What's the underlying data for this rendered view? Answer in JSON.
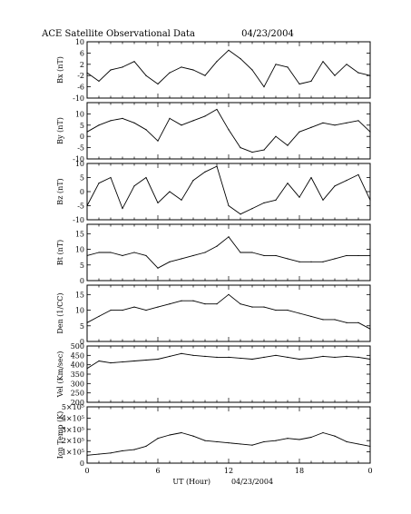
{
  "title": "ACE Satellite Observational Data",
  "title_date": "04/23/2004",
  "chart_data": {
    "type": "line",
    "title": "ACE Satellite Observational Data 04/23/2004",
    "xlabel": "UT (Hour)",
    "xlabel_date": "04/23/2004",
    "x_ticks": [
      "0",
      "6",
      "12",
      "18",
      "0"
    ],
    "xlim": [
      0,
      24
    ],
    "grid": false,
    "panels": [
      {
        "ylabel": "Bx (nT)",
        "ylim": [
          -10,
          10
        ],
        "yticks": [
          "-10",
          "-6",
          "-2",
          "2",
          "6",
          "10"
        ],
        "yticks_values": [
          -10,
          -6,
          -2,
          2,
          6,
          10
        ],
        "x": [
          0,
          1,
          2,
          3,
          4,
          5,
          6,
          7,
          8,
          9,
          10,
          11,
          12,
          13,
          14,
          15,
          16,
          17,
          18,
          19,
          20,
          21,
          22,
          23,
          24
        ],
        "values": [
          -1,
          -4,
          0,
          1,
          3,
          -2,
          -5,
          -1,
          1,
          0,
          -2,
          3,
          7,
          4,
          0,
          -6,
          2,
          1,
          -5,
          -4,
          3,
          -2,
          2,
          -1,
          -2
        ]
      },
      {
        "ylabel": "By (nT)",
        "ylim": [
          -10,
          15
        ],
        "yticks": [
          "-10",
          "-5",
          "0",
          "5",
          "10"
        ],
        "yticks_values": [
          -10,
          -5,
          0,
          5,
          10
        ],
        "x": [
          0,
          1,
          2,
          3,
          4,
          5,
          6,
          7,
          8,
          9,
          10,
          11,
          12,
          13,
          14,
          15,
          16,
          17,
          18,
          19,
          20,
          21,
          22,
          23,
          24
        ],
        "values": [
          2,
          5,
          7,
          8,
          6,
          3,
          -2,
          8,
          5,
          7,
          9,
          12,
          3,
          -5,
          -7,
          -6,
          0,
          -4,
          2,
          4,
          6,
          5,
          6,
          7,
          2
        ]
      },
      {
        "ylabel": "Bz (nT)",
        "ylim": [
          -10,
          10
        ],
        "yticks": [
          "-10",
          "-5",
          "0",
          "5",
          "10"
        ],
        "yticks_values": [
          -10,
          -5,
          0,
          5,
          10
        ],
        "x": [
          0,
          1,
          2,
          3,
          4,
          5,
          6,
          7,
          8,
          9,
          10,
          11,
          12,
          13,
          14,
          15,
          16,
          17,
          18,
          19,
          20,
          21,
          22,
          23,
          24
        ],
        "values": [
          -5,
          3,
          5,
          -6,
          2,
          5,
          -4,
          0,
          -3,
          4,
          7,
          9,
          -5,
          -8,
          -6,
          -4,
          -3,
          3,
          -2,
          5,
          -3,
          2,
          4,
          6,
          -3
        ]
      },
      {
        "ylabel": "Bt (nT)",
        "ylim": [
          0,
          18
        ],
        "yticks": [
          "0",
          "5",
          "10",
          "15"
        ],
        "yticks_values": [
          0,
          5,
          10,
          15
        ],
        "x": [
          0,
          1,
          2,
          3,
          4,
          5,
          6,
          7,
          8,
          9,
          10,
          11,
          12,
          13,
          14,
          15,
          16,
          17,
          18,
          19,
          20,
          21,
          22,
          23,
          24
        ],
        "values": [
          8,
          9,
          9,
          8,
          9,
          8,
          4,
          6,
          7,
          8,
          9,
          11,
          14,
          9,
          9,
          8,
          8,
          7,
          6,
          6,
          6,
          7,
          8,
          8,
          8
        ]
      },
      {
        "ylabel": "Den (1/CC)",
        "ylim": [
          0,
          18
        ],
        "yticks": [
          "0",
          "5",
          "10",
          "15"
        ],
        "yticks_values": [
          0,
          5,
          10,
          15
        ],
        "x": [
          0,
          1,
          2,
          3,
          4,
          5,
          6,
          7,
          8,
          9,
          10,
          11,
          12,
          13,
          14,
          15,
          16,
          17,
          18,
          19,
          20,
          21,
          22,
          23,
          24
        ],
        "values": [
          6,
          8,
          10,
          10,
          11,
          10,
          11,
          12,
          13,
          13,
          12,
          12,
          15,
          12,
          11,
          11,
          10,
          10,
          9,
          8,
          7,
          7,
          6,
          6,
          4
        ]
      },
      {
        "ylabel": "Vel (Km/sec)",
        "ylim": [
          200,
          500
        ],
        "yticks": [
          "200",
          "250",
          "300",
          "350",
          "400",
          "450",
          "500"
        ],
        "yticks_values": [
          200,
          250,
          300,
          350,
          400,
          450,
          500
        ],
        "x": [
          0,
          1,
          2,
          3,
          4,
          5,
          6,
          7,
          8,
          9,
          10,
          11,
          12,
          13,
          14,
          15,
          16,
          17,
          18,
          19,
          20,
          21,
          22,
          23,
          24
        ],
        "values": [
          380,
          420,
          410,
          415,
          420,
          425,
          430,
          445,
          460,
          450,
          445,
          440,
          440,
          435,
          430,
          440,
          450,
          440,
          430,
          435,
          445,
          440,
          445,
          440,
          430
        ]
      },
      {
        "ylabel": "Ion Temp (K)",
        "ylim": [
          0,
          500000
        ],
        "yticks": [
          "0",
          "1×10⁵",
          "2×10⁵",
          "3×10⁵",
          "4×10⁵",
          "5×10⁵"
        ],
        "yticks_values": [
          0,
          100000,
          200000,
          300000,
          400000,
          500000
        ],
        "x": [
          0,
          1,
          2,
          3,
          4,
          5,
          6,
          7,
          8,
          9,
          10,
          11,
          12,
          13,
          14,
          15,
          16,
          17,
          18,
          19,
          20,
          21,
          22,
          23,
          24
        ],
        "values": [
          70000,
          80000,
          90000,
          110000,
          120000,
          150000,
          220000,
          250000,
          270000,
          240000,
          200000,
          190000,
          180000,
          170000,
          160000,
          190000,
          200000,
          220000,
          210000,
          230000,
          270000,
          240000,
          190000,
          170000,
          150000
        ]
      }
    ]
  }
}
